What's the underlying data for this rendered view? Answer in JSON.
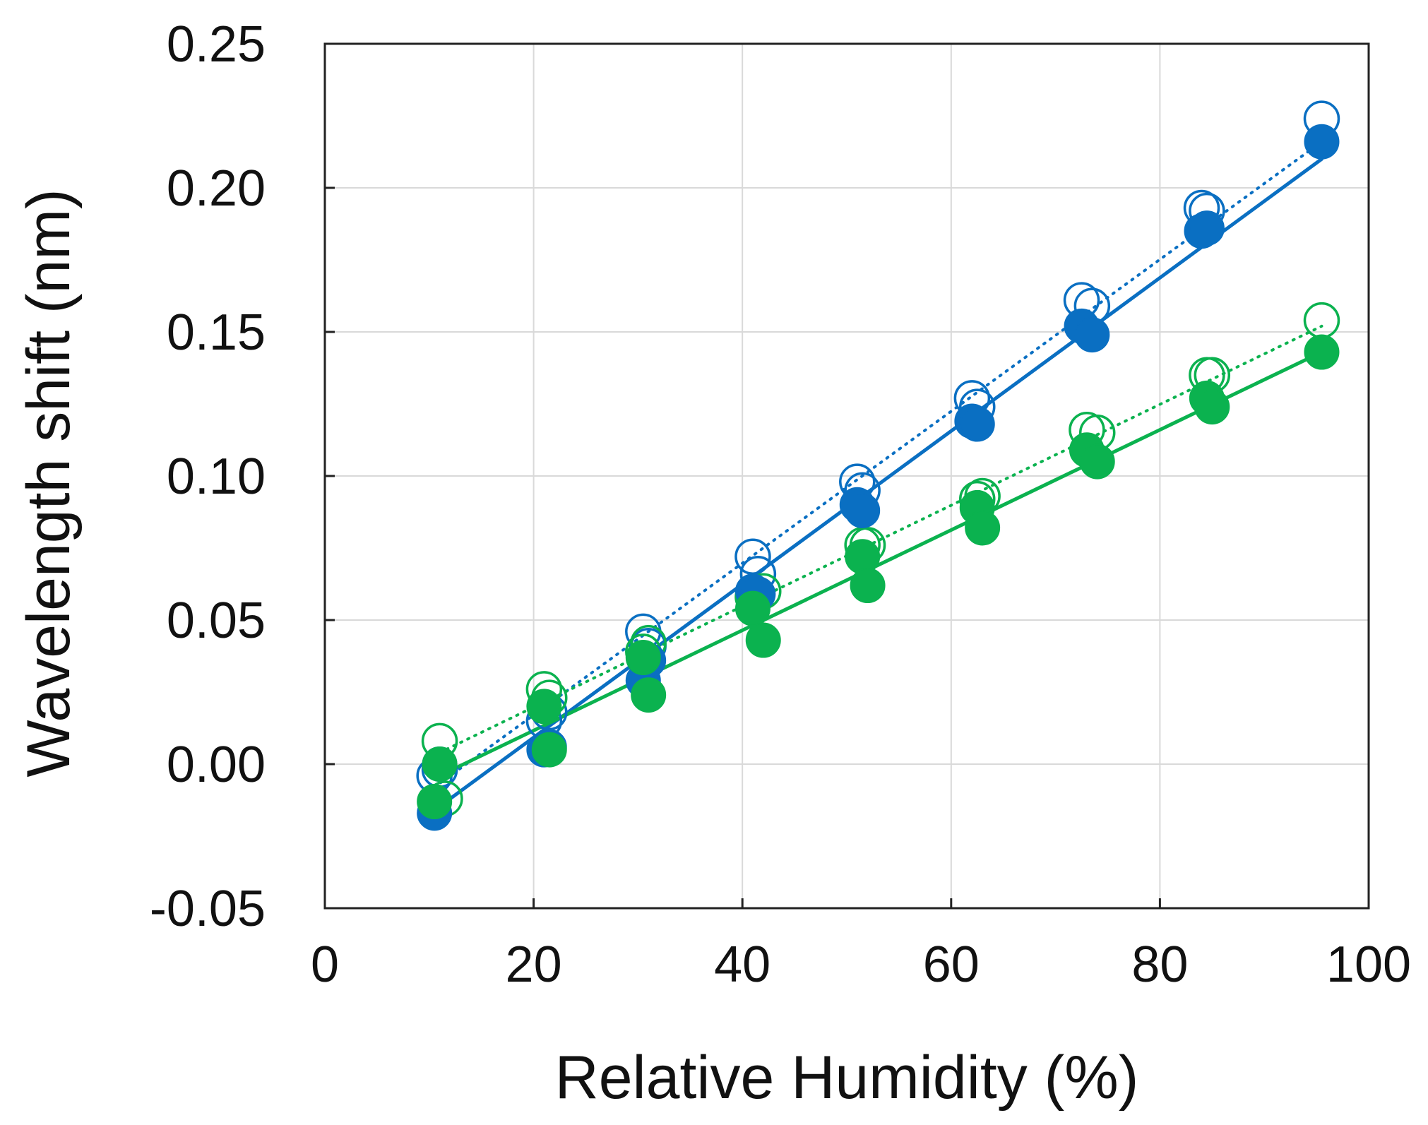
{
  "chart_data": {
    "type": "scatter",
    "title": "",
    "xlabel": "Relative Humidity (%)",
    "ylabel": "Wavelength shift (nm)",
    "xlim": [
      0,
      100
    ],
    "ylim": [
      -0.05,
      0.25
    ],
    "x_ticks": [
      0,
      20,
      40,
      60,
      80,
      100
    ],
    "x_tick_labels": [
      "0",
      "20",
      "40",
      "60",
      "80",
      "100"
    ],
    "y_ticks": [
      -0.05,
      0.0,
      0.05,
      0.1,
      0.15,
      0.2,
      0.25
    ],
    "y_tick_labels": [
      "-0.05",
      "0.00",
      "0.05",
      "0.10",
      "0.15",
      "0.20",
      "0.25"
    ],
    "grid": true,
    "legend": "none",
    "colors": {
      "blue": "#0a6fc2",
      "green": "#0bb24f",
      "grid": "#d9d9d9",
      "axis": "#222222"
    },
    "series": [
      {
        "name": "blue open markers",
        "color": "#0a6fc2",
        "marker": "open",
        "points": [
          {
            "x": 10.5,
            "y": -0.004
          },
          {
            "x": 11.0,
            "y": -0.002
          },
          {
            "x": 21.0,
            "y": 0.015
          },
          {
            "x": 21.5,
            "y": 0.018
          },
          {
            "x": 30.5,
            "y": 0.046
          },
          {
            "x": 31.0,
            "y": 0.041
          },
          {
            "x": 41.0,
            "y": 0.072
          },
          {
            "x": 41.5,
            "y": 0.066
          },
          {
            "x": 51.0,
            "y": 0.098
          },
          {
            "x": 51.5,
            "y": 0.095
          },
          {
            "x": 62.0,
            "y": 0.127
          },
          {
            "x": 62.5,
            "y": 0.124
          },
          {
            "x": 72.5,
            "y": 0.161
          },
          {
            "x": 73.5,
            "y": 0.159
          },
          {
            "x": 84.0,
            "y": 0.193
          },
          {
            "x": 84.5,
            "y": 0.192
          },
          {
            "x": 95.5,
            "y": 0.224
          }
        ],
        "fit": {
          "x": [
            10.5,
            95.5
          ],
          "y": [
            -0.008,
            0.216
          ],
          "style": "dotted"
        }
      },
      {
        "name": "blue filled markers",
        "color": "#0a6fc2",
        "marker": "filled",
        "points": [
          {
            "x": 10.5,
            "y": -0.017
          },
          {
            "x": 11.0,
            "y": 0.0
          },
          {
            "x": 21.0,
            "y": 0.005
          },
          {
            "x": 21.5,
            "y": 0.006
          },
          {
            "x": 30.5,
            "y": 0.029
          },
          {
            "x": 31.0,
            "y": 0.036
          },
          {
            "x": 41.0,
            "y": 0.06
          },
          {
            "x": 41.5,
            "y": 0.059
          },
          {
            "x": 51.0,
            "y": 0.09
          },
          {
            "x": 51.5,
            "y": 0.088
          },
          {
            "x": 62.0,
            "y": 0.119
          },
          {
            "x": 62.5,
            "y": 0.118
          },
          {
            "x": 72.5,
            "y": 0.152
          },
          {
            "x": 73.5,
            "y": 0.149
          },
          {
            "x": 84.0,
            "y": 0.185
          },
          {
            "x": 84.5,
            "y": 0.186
          },
          {
            "x": 95.5,
            "y": 0.216
          }
        ],
        "fit": {
          "x": [
            10.5,
            95.5
          ],
          "y": [
            -0.016,
            0.21
          ],
          "style": "solid"
        }
      },
      {
        "name": "green open markers",
        "color": "#0bb24f",
        "marker": "open",
        "points": [
          {
            "x": 11.0,
            "y": 0.008
          },
          {
            "x": 11.5,
            "y": -0.012
          },
          {
            "x": 21.0,
            "y": 0.026
          },
          {
            "x": 21.5,
            "y": 0.023
          },
          {
            "x": 30.5,
            "y": 0.039
          },
          {
            "x": 31.0,
            "y": 0.042
          },
          {
            "x": 41.0,
            "y": 0.058
          },
          {
            "x": 42.0,
            "y": 0.06
          },
          {
            "x": 51.5,
            "y": 0.076
          },
          {
            "x": 52.0,
            "y": 0.076
          },
          {
            "x": 62.5,
            "y": 0.092
          },
          {
            "x": 63.0,
            "y": 0.093
          },
          {
            "x": 73.0,
            "y": 0.116
          },
          {
            "x": 74.0,
            "y": 0.115
          },
          {
            "x": 84.5,
            "y": 0.135
          },
          {
            "x": 85.0,
            "y": 0.135
          },
          {
            "x": 95.5,
            "y": 0.154
          }
        ],
        "fit": {
          "x": [
            11.0,
            95.5
          ],
          "y": [
            0.004,
            0.152
          ],
          "style": "dotted"
        }
      },
      {
        "name": "green filled markers",
        "color": "#0bb24f",
        "marker": "filled",
        "points": [
          {
            "x": 10.5,
            "y": -0.013
          },
          {
            "x": 11.0,
            "y": 0.0
          },
          {
            "x": 21.0,
            "y": 0.02
          },
          {
            "x": 21.5,
            "y": 0.005
          },
          {
            "x": 30.5,
            "y": 0.037
          },
          {
            "x": 31.0,
            "y": 0.024
          },
          {
            "x": 41.0,
            "y": 0.054
          },
          {
            "x": 42.0,
            "y": 0.043
          },
          {
            "x": 51.5,
            "y": 0.072
          },
          {
            "x": 52.0,
            "y": 0.062
          },
          {
            "x": 62.5,
            "y": 0.089
          },
          {
            "x": 63.0,
            "y": 0.082
          },
          {
            "x": 73.0,
            "y": 0.109
          },
          {
            "x": 74.0,
            "y": 0.105
          },
          {
            "x": 84.5,
            "y": 0.127
          },
          {
            "x": 85.0,
            "y": 0.124
          },
          {
            "x": 95.5,
            "y": 0.143
          }
        ],
        "fit": {
          "x": [
            11.0,
            95.5
          ],
          "y": [
            -0.004,
            0.143
          ],
          "style": "solid"
        }
      }
    ]
  }
}
